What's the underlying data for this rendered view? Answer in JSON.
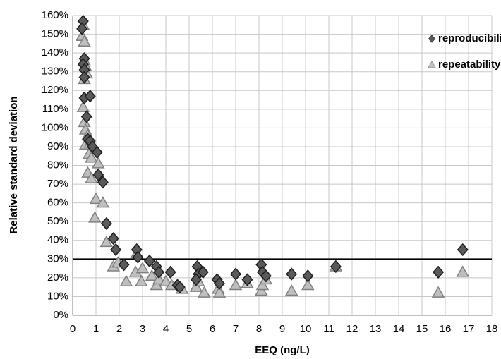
{
  "chart_data": {
    "type": "scatter",
    "x_label": "EEQ (ng/L)",
    "y_label": "Relative standard deviation",
    "xlim": [
      0,
      18
    ],
    "xticks": [
      0,
      1,
      2,
      3,
      4,
      5,
      6,
      7,
      8,
      9,
      10,
      11,
      12,
      13,
      14,
      15,
      16,
      17,
      18
    ],
    "ylim": [
      0,
      160
    ],
    "yticks": [
      {
        "value": 0,
        "label": "0%"
      },
      {
        "value": 10,
        "label": "10%"
      },
      {
        "value": 20,
        "label": "20%"
      },
      {
        "value": 30,
        "label": "30%"
      },
      {
        "value": 40,
        "label": "40%"
      },
      {
        "value": 50,
        "label": "50%"
      },
      {
        "value": 60,
        "label": "60%"
      },
      {
        "value": 70,
        "label": "70%"
      },
      {
        "value": 80,
        "label": "80%"
      },
      {
        "value": 90,
        "label": "90%"
      },
      {
        "value": 100,
        "label": "100%"
      },
      {
        "value": 110,
        "label": "110%"
      },
      {
        "value": 120,
        "label": "120%"
      },
      {
        "value": 130,
        "label": "130%"
      },
      {
        "value": 140,
        "label": "140%"
      },
      {
        "value": 150,
        "label": "150%"
      },
      {
        "value": 160,
        "label": "160%"
      }
    ],
    "grid": true,
    "legend": "upper right",
    "reference_line": 30,
    "series": [
      {
        "name": "reproducibility",
        "marker": "diamond",
        "color": "#5a5a5a",
        "x": [
          0.45,
          0.4,
          0.5,
          0.45,
          0.5,
          0.5,
          0.5,
          0.75,
          0.6,
          0.65,
          0.75,
          0.85,
          1.05,
          1.1,
          1.3,
          1.45,
          1.75,
          1.85,
          2.2,
          2.75,
          2.8,
          3.3,
          3.6,
          3.7,
          4.2,
          4.5,
          4.6,
          5.35,
          5.4,
          5.6,
          6.2,
          6.3,
          7.0,
          7.5,
          8.1,
          8.15,
          8.3,
          9.4,
          10.1,
          11.3,
          15.7,
          16.75,
          5.3
        ],
        "values": [
          157,
          153,
          137,
          134,
          131,
          127,
          116,
          117,
          106,
          94,
          93,
          90,
          87,
          75,
          71,
          49,
          41,
          35,
          27,
          35,
          31,
          29,
          26,
          23,
          23,
          16,
          15,
          26,
          22,
          23,
          19,
          17,
          22,
          19,
          27,
          23,
          21,
          22,
          21,
          26,
          23,
          35,
          19
        ]
      },
      {
        "name": "repeatability",
        "marker": "triangle",
        "color": "#bfbfbf",
        "x": [
          0.4,
          0.45,
          0.5,
          0.5,
          0.55,
          0.6,
          0.5,
          0.45,
          0.5,
          0.55,
          0.55,
          0.65,
          0.75,
          0.7,
          0.8,
          0.65,
          0.8,
          0.95,
          1.0,
          1.1,
          1.3,
          1.45,
          1.75,
          1.95,
          2.3,
          2.7,
          2.75,
          2.95,
          3.0,
          3.4,
          3.6,
          3.7,
          4.0,
          4.25,
          4.7,
          5.3,
          5.4,
          5.65,
          6.25,
          6.3,
          7.0,
          7.5,
          8.1,
          8.15,
          8.3,
          9.4,
          10.1,
          11.3,
          15.7,
          16.75
        ],
        "values": [
          149,
          155,
          146,
          136,
          133,
          129,
          126,
          111,
          103,
          99,
          91,
          96,
          92,
          86,
          84,
          76,
          73,
          52,
          62,
          81,
          60,
          39,
          26,
          28,
          18,
          23,
          33,
          18,
          25,
          21,
          16,
          19,
          18,
          16,
          14,
          15,
          18,
          12,
          14,
          12,
          16,
          17,
          13,
          16,
          19,
          13,
          16,
          26,
          12,
          23
        ]
      }
    ]
  }
}
